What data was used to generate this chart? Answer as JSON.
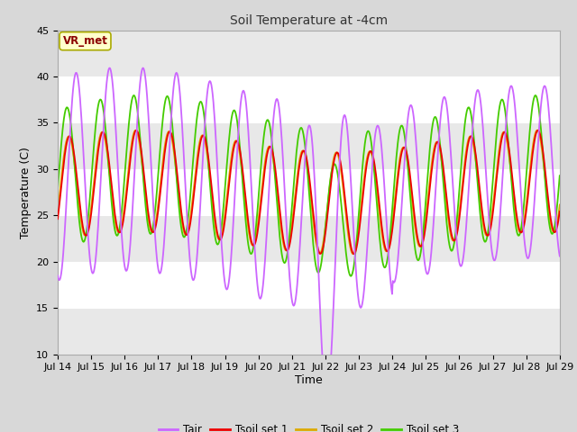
{
  "title": "Soil Temperature at -4cm",
  "xlabel": "Time",
  "ylabel": "Temperature (C)",
  "ylim": [
    10,
    45
  ],
  "background_color": "#d8d8d8",
  "plot_bg_color": "#ffffff",
  "annotation_text": "VR_met",
  "annotation_color": "#8B0000",
  "annotation_bg": "#FFFFCC",
  "annotation_edge": "#AAAA00",
  "tick_labels": [
    "Jul 14",
    "Jul 15",
    "Jul 16",
    "Jul 17",
    "Jul 18",
    "Jul 19",
    "Jul 20",
    "Jul 21",
    "Jul 22",
    "Jul 23",
    "Jul 24",
    "Jul 25",
    "Jul 26",
    "Jul 27",
    "Jul 28",
    "Jul 29"
  ],
  "yticks": [
    10,
    15,
    20,
    25,
    30,
    35,
    40,
    45
  ],
  "colors": {
    "Tair": "#CC66FF",
    "Tsoil1": "#EE0000",
    "Tsoil2": "#DDAA00",
    "Tsoil3": "#44CC00"
  },
  "legend_labels": [
    "Tair",
    "Tsoil set 1",
    "Tsoil set 2",
    "Tsoil set 3"
  ]
}
